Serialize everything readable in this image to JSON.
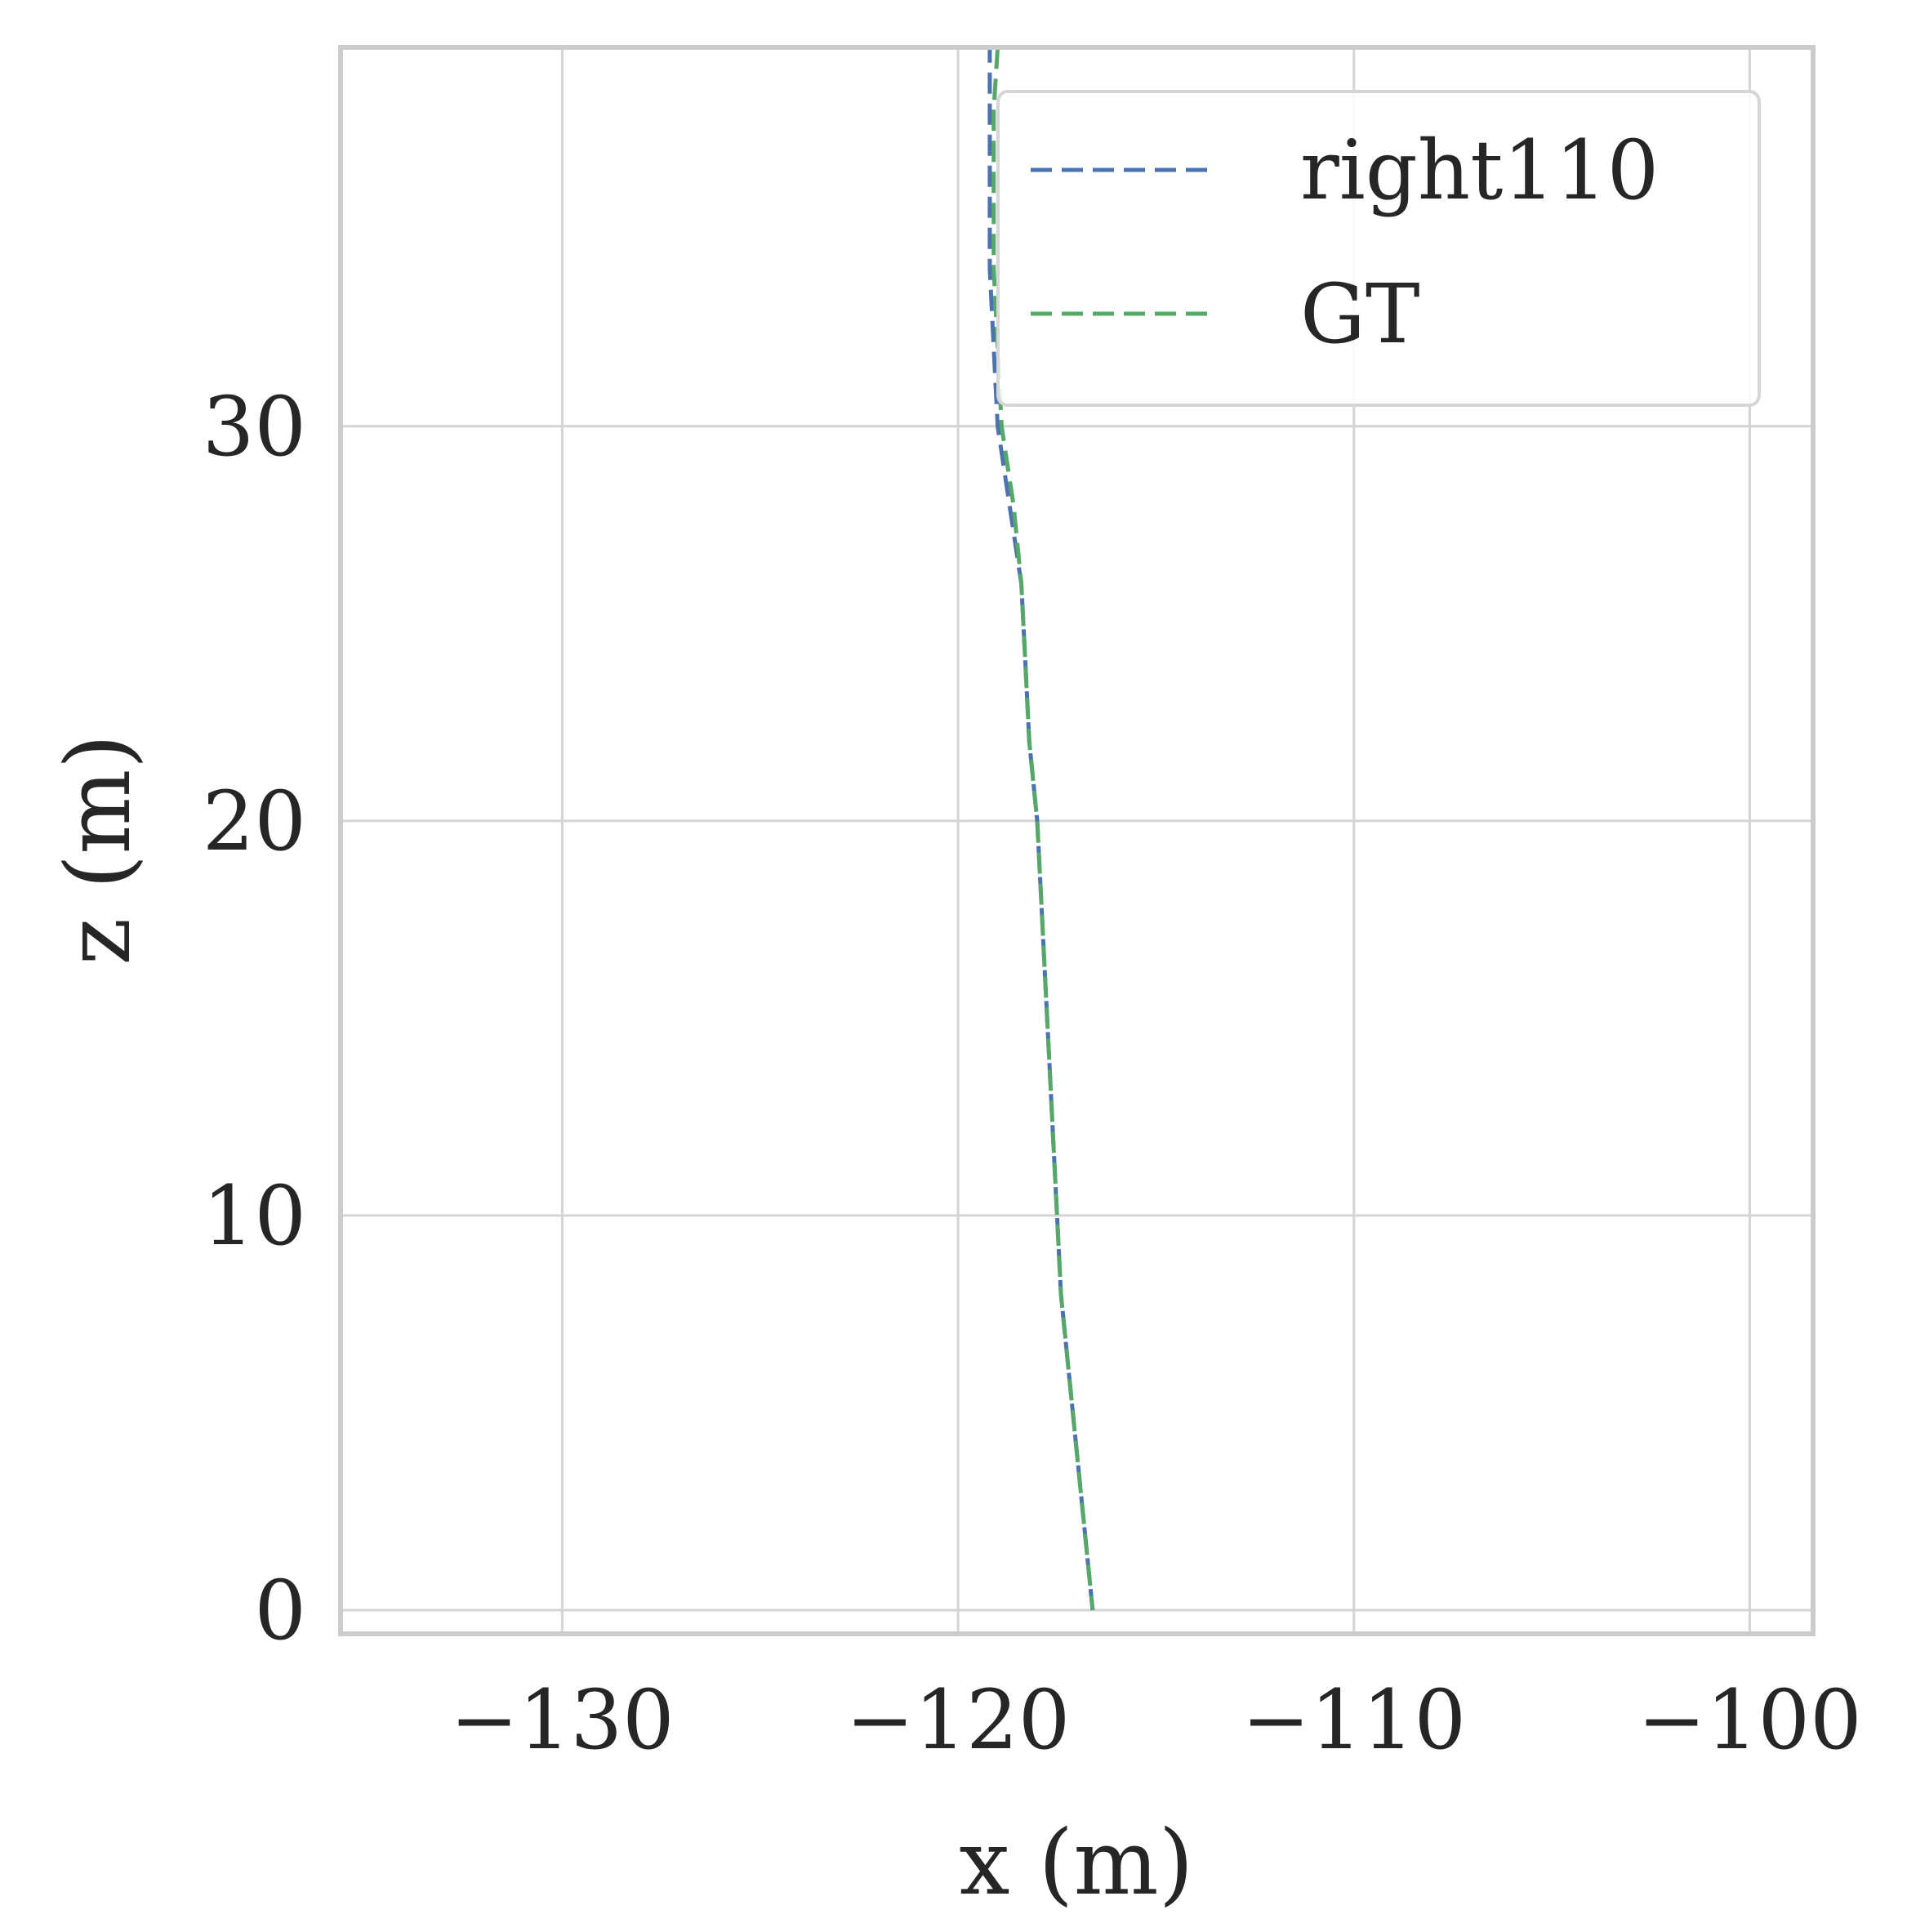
{
  "chart_data": {
    "type": "line",
    "title": "",
    "xlabel": "x (m)",
    "ylabel": "z (m)",
    "xlim": [
      -135.6,
      -98.4
    ],
    "ylim": [
      -0.6,
      39.6
    ],
    "x_ticks": [
      -130,
      -120,
      -110,
      -100
    ],
    "x_tick_labels": [
      "−130",
      "−120",
      "−110",
      "−100"
    ],
    "y_ticks": [
      0,
      10,
      20,
      30
    ],
    "y_tick_labels": [
      "0",
      "10",
      "20",
      "30"
    ],
    "grid": true,
    "legend": "top-right",
    "series": [
      {
        "name": "right110",
        "color": "#4c72b0",
        "style": "dashed",
        "points": [
          [
            -116.6,
            0
          ],
          [
            -116.8,
            2
          ],
          [
            -117.0,
            4
          ],
          [
            -117.2,
            6
          ],
          [
            -117.4,
            8
          ],
          [
            -117.5,
            10
          ],
          [
            -117.6,
            12
          ],
          [
            -117.7,
            14
          ],
          [
            -117.8,
            16
          ],
          [
            -117.9,
            18
          ],
          [
            -118.0,
            20
          ],
          [
            -118.2,
            22
          ],
          [
            -118.3,
            24
          ],
          [
            -118.4,
            26
          ],
          [
            -118.7,
            28
          ],
          [
            -119.0,
            30
          ],
          [
            -119.1,
            32
          ],
          [
            -119.2,
            34
          ],
          [
            -119.2,
            36
          ],
          [
            -119.2,
            38
          ],
          [
            -119.2,
            39.6
          ]
        ]
      },
      {
        "name": "GT",
        "color": "#55a868",
        "style": "dashed",
        "points": [
          [
            -116.6,
            0
          ],
          [
            -116.8,
            2
          ],
          [
            -117.0,
            4
          ],
          [
            -117.2,
            6
          ],
          [
            -117.4,
            8
          ],
          [
            -117.5,
            10
          ],
          [
            -117.6,
            12
          ],
          [
            -117.7,
            14
          ],
          [
            -117.8,
            16
          ],
          [
            -117.9,
            18
          ],
          [
            -118.0,
            20
          ],
          [
            -118.2,
            22
          ],
          [
            -118.3,
            24
          ],
          [
            -118.4,
            26
          ],
          [
            -118.6,
            28
          ],
          [
            -118.9,
            30
          ],
          [
            -119.0,
            32
          ],
          [
            -119.1,
            34
          ],
          [
            -119.1,
            36
          ],
          [
            -119.1,
            38
          ],
          [
            -119.0,
            39.6
          ]
        ]
      }
    ]
  }
}
